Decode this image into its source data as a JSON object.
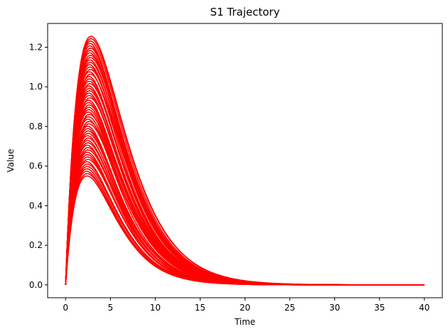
{
  "chart_data": {
    "type": "line",
    "title": "S1 Trajectory",
    "xlabel": "Time",
    "ylabel": "Value",
    "xlim": [
      -2,
      42
    ],
    "ylim": [
      -0.065,
      1.32
    ],
    "xticks": [
      0,
      5,
      10,
      15,
      20,
      25,
      30,
      35,
      40
    ],
    "yticks": [
      0.0,
      0.2,
      0.4,
      0.6,
      0.8,
      1.0,
      1.2
    ],
    "ytick_labels": [
      "0.0",
      "0.2",
      "0.4",
      "0.6",
      "0.8",
      "1.0",
      "1.2"
    ],
    "grid": false,
    "legend": "none",
    "line_color": "#ff0000",
    "series_model": "y = A * (t / tp) * exp(1 - t / tp)",
    "series_count": 60,
    "peak_value_range": [
      0.55,
      1.255
    ],
    "peak_time_range": [
      2.3,
      2.9
    ],
    "time_range": [
      0,
      40
    ],
    "envelope": {
      "upper": [
        {
          "x": 0,
          "y": 0.0
        },
        {
          "x": 1,
          "y": 0.76
        },
        {
          "x": 2.7,
          "y": 1.255
        },
        {
          "x": 5,
          "y": 1.07
        },
        {
          "x": 10,
          "y": 0.42
        },
        {
          "x": 15,
          "y": 0.13
        },
        {
          "x": 20,
          "y": 0.035
        },
        {
          "x": 25,
          "y": 0.009
        },
        {
          "x": 30,
          "y": 0.002
        },
        {
          "x": 40,
          "y": 0.0
        }
      ],
      "lower": [
        {
          "x": 0,
          "y": 0.0
        },
        {
          "x": 1,
          "y": 0.36
        },
        {
          "x": 2.4,
          "y": 0.55
        },
        {
          "x": 5,
          "y": 0.38
        },
        {
          "x": 10,
          "y": 0.07
        },
        {
          "x": 15,
          "y": 0.01
        },
        {
          "x": 20,
          "y": 0.001
        },
        {
          "x": 40,
          "y": 0.0
        }
      ]
    }
  }
}
